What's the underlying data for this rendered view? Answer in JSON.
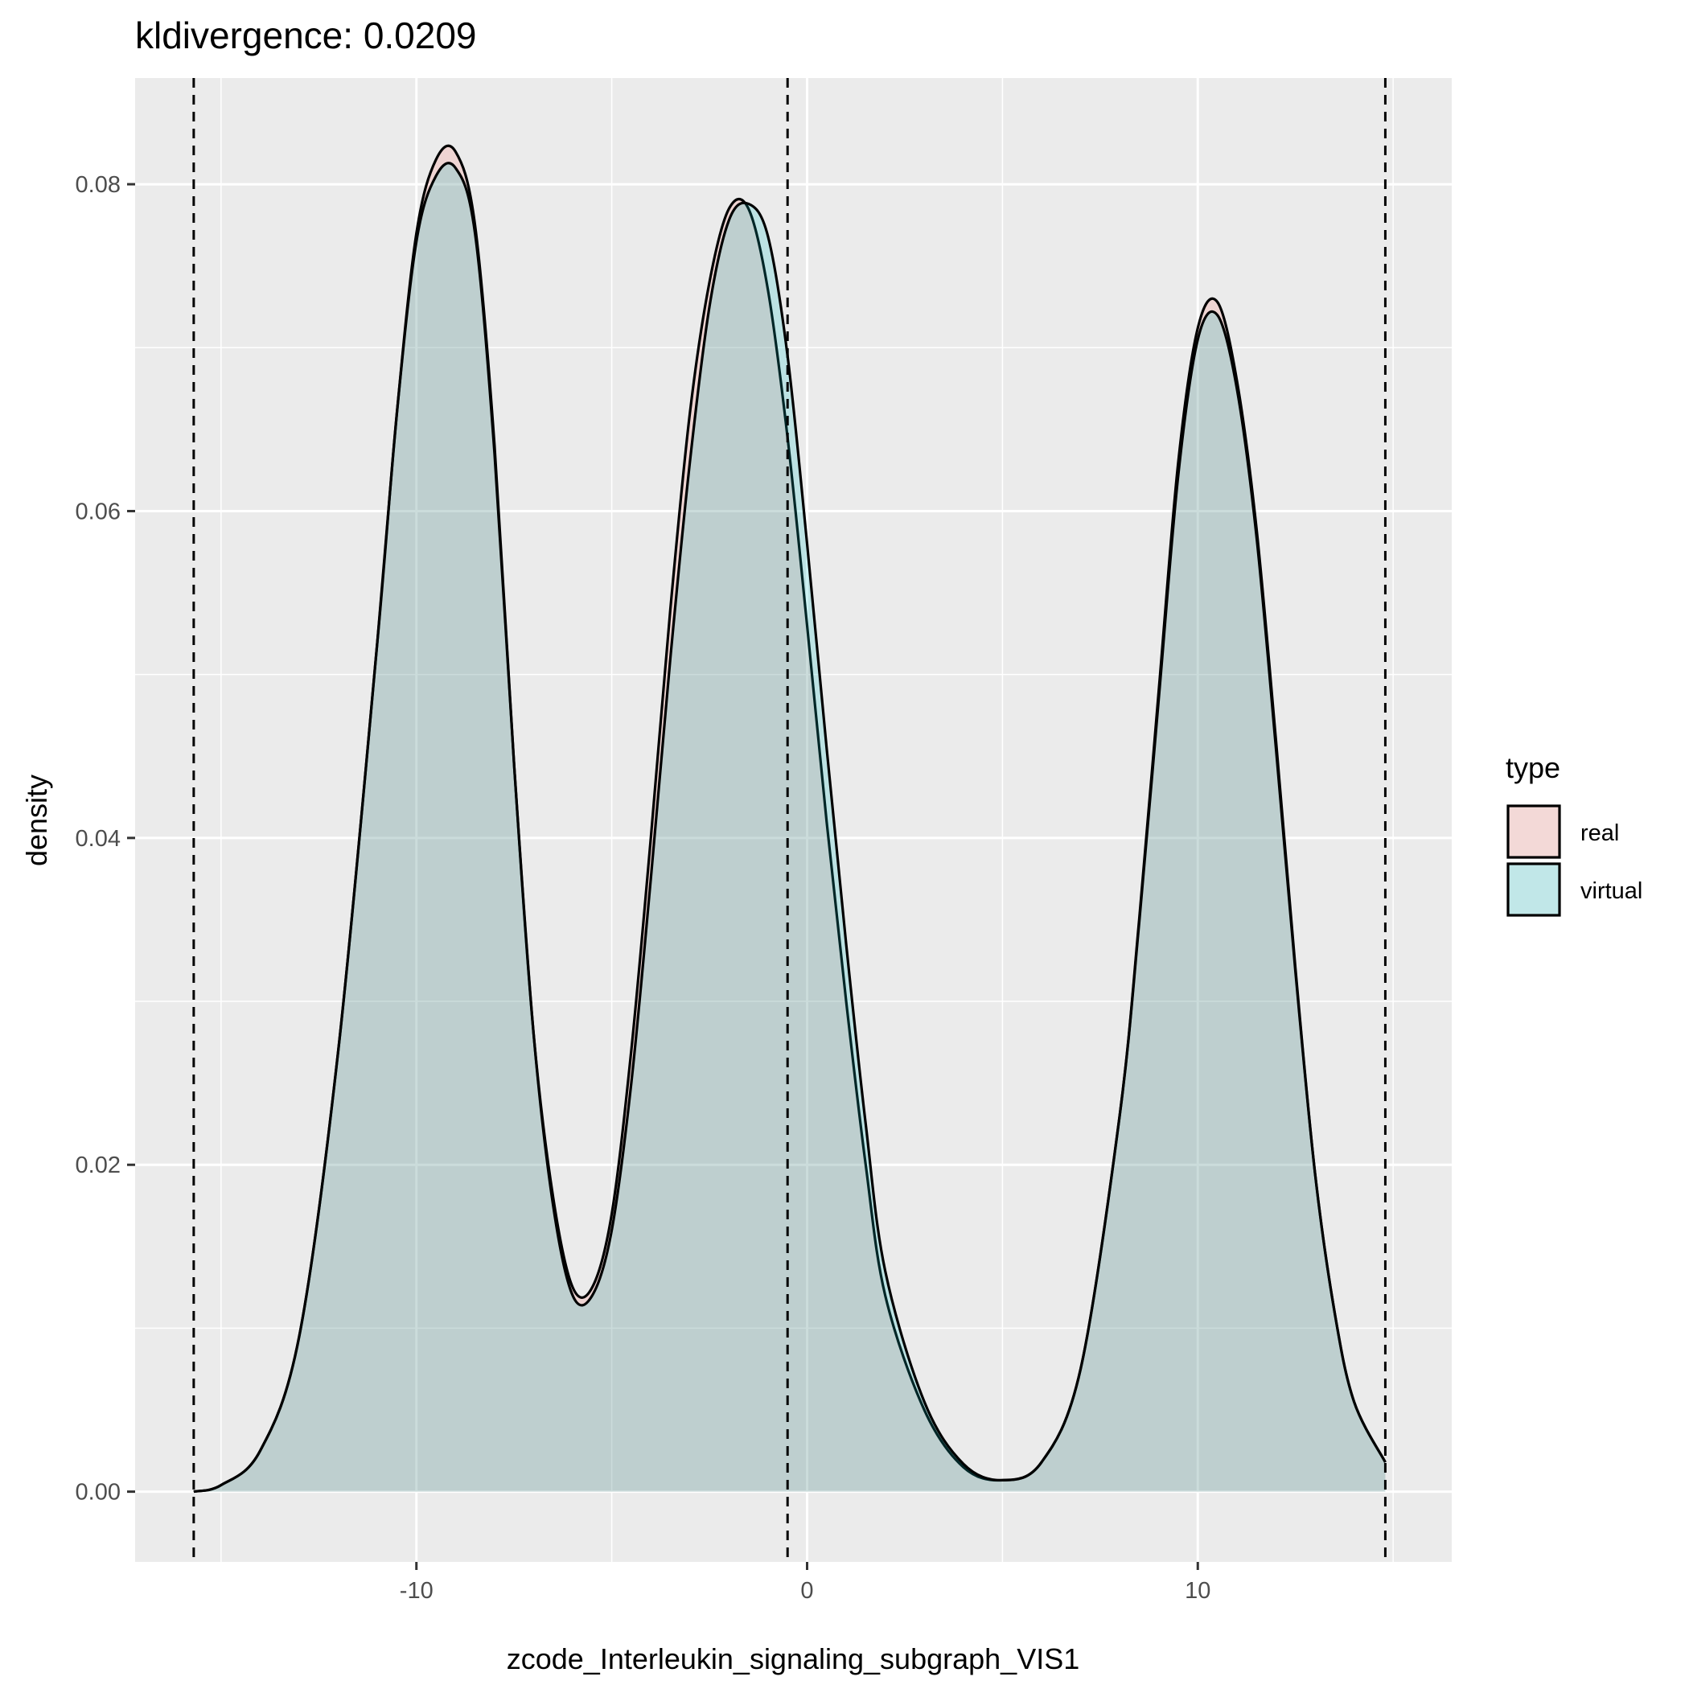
{
  "chart_data": {
    "type": "area",
    "title": "kldivergence: 0.0209",
    "xlabel": "zcode_Interleukin_signaling_subgraph_VIS1",
    "ylabel": "density",
    "xlim": [
      -17.2,
      16.5
    ],
    "ylim": [
      -0.0043,
      0.0865
    ],
    "x_ticks": [
      -10,
      0,
      10
    ],
    "x_tick_labels": [
      "-10",
      "0",
      "10"
    ],
    "y_ticks": [
      0.0,
      0.02,
      0.04,
      0.06,
      0.08
    ],
    "y_tick_labels": [
      "0.00",
      "0.02",
      "0.04",
      "0.06",
      "0.08"
    ],
    "grid": true,
    "legend": {
      "title": "type",
      "position": "right"
    },
    "vlines": [
      -15.7,
      -0.5,
      14.8
    ],
    "series": [
      {
        "name": "real",
        "fill": "#F8766D",
        "x": [
          -15.7,
          -15,
          -14,
          -13,
          -12,
          -11,
          -10.5,
          -10,
          -9.5,
          -9,
          -8.5,
          -8,
          -7.5,
          -7,
          -6.5,
          -6,
          -5.5,
          -5,
          -4.5,
          -4,
          -3.5,
          -3,
          -2.5,
          -2,
          -1.5,
          -1,
          -0.5,
          0,
          0.5,
          1,
          1.5,
          2,
          3,
          4,
          5,
          6,
          7,
          8,
          8.5,
          9,
          9.5,
          10,
          10.5,
          11,
          11.5,
          12,
          12.5,
          13,
          13.5,
          14,
          14.8
        ],
        "y": [
          0.0,
          0.0004,
          0.0025,
          0.0095,
          0.027,
          0.052,
          0.066,
          0.077,
          0.0815,
          0.082,
          0.0775,
          0.064,
          0.0445,
          0.028,
          0.018,
          0.0125,
          0.0125,
          0.017,
          0.027,
          0.04,
          0.054,
          0.066,
          0.074,
          0.0785,
          0.0785,
          0.0735,
          0.0645,
          0.053,
          0.041,
          0.03,
          0.02,
          0.012,
          0.005,
          0.0015,
          0.0007,
          0.0018,
          0.0075,
          0.023,
          0.035,
          0.049,
          0.063,
          0.0712,
          0.0728,
          0.068,
          0.059,
          0.046,
          0.032,
          0.0195,
          0.011,
          0.0055,
          0.0018
        ]
      },
      {
        "name": "virtual",
        "fill": "#00BFC4",
        "x": [
          -15.7,
          -15,
          -14,
          -13,
          -12,
          -11,
          -10.5,
          -10,
          -9.5,
          -9,
          -8.5,
          -8,
          -7.5,
          -7,
          -6.5,
          -6,
          -5.5,
          -5,
          -4.5,
          -4,
          -3.5,
          -3,
          -2.5,
          -2,
          -1.5,
          -1,
          -0.5,
          0,
          0.5,
          1,
          1.5,
          2,
          3,
          4,
          5,
          6,
          7,
          8,
          8.5,
          9,
          9.5,
          10,
          10.5,
          11,
          11.5,
          12,
          12.5,
          13,
          13.5,
          14,
          14.8
        ],
        "y": [
          0.0,
          0.0004,
          0.0025,
          0.0095,
          0.027,
          0.052,
          0.066,
          0.0765,
          0.0805,
          0.081,
          0.077,
          0.0635,
          0.0445,
          0.028,
          0.0175,
          0.012,
          0.012,
          0.016,
          0.025,
          0.0375,
          0.051,
          0.063,
          0.0725,
          0.0778,
          0.0788,
          0.0768,
          0.0695,
          0.058,
          0.0455,
          0.0335,
          0.0225,
          0.0135,
          0.0055,
          0.0017,
          0.0007,
          0.0018,
          0.0075,
          0.023,
          0.0348,
          0.0485,
          0.0622,
          0.0705,
          0.072,
          0.0675,
          0.0585,
          0.0455,
          0.0318,
          0.0195,
          0.011,
          0.0055,
          0.0018
        ]
      }
    ]
  }
}
